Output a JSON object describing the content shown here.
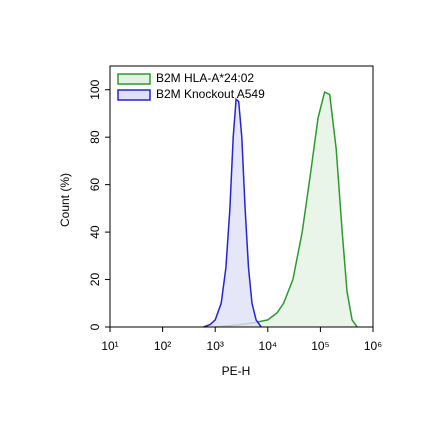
{
  "chart_data": {
    "type": "histogram-overlay",
    "x_label": "PE-H",
    "y_label": "Count (%)",
    "xscale": "log",
    "xlim": [
      10,
      1000000
    ],
    "xticks": [
      {
        "value": 10,
        "label": "10¹"
      },
      {
        "value": 100,
        "label": "10²"
      },
      {
        "value": 1000,
        "label": "10³"
      },
      {
        "value": 10000,
        "label": "10⁴"
      },
      {
        "value": 100000,
        "label": "10⁵"
      },
      {
        "value": 1000000,
        "label": "10⁶"
      }
    ],
    "ylim": [
      0,
      110
    ],
    "yticks": [
      0,
      20,
      40,
      60,
      80,
      100
    ],
    "legend": "upper left",
    "series": [
      {
        "name": "B2M HLA-A*24:02",
        "color": "#2e9a2e",
        "fill": "#e3f2e3",
        "x": [
          1000,
          3000,
          6000,
          10000,
          15000,
          20000,
          30000,
          45000,
          65000,
          90000,
          120000,
          150000,
          200000,
          260000,
          320000,
          400000,
          500000
        ],
        "values": [
          0,
          1,
          2,
          3,
          6,
          10,
          20,
          40,
          65,
          88,
          99,
          98,
          75,
          40,
          15,
          3,
          0
        ]
      },
      {
        "name": "B2M Knockout A549",
        "color": "#2424d4",
        "fill": "#e0e0f8",
        "x": [
          600,
          800,
          1000,
          1300,
          1600,
          1900,
          2200,
          2500,
          2800,
          3200,
          3700,
          4300,
          5000,
          6000,
          7500
        ],
        "values": [
          0,
          1,
          3,
          10,
          25,
          50,
          80,
          96,
          95,
          80,
          50,
          25,
          10,
          3,
          0
        ]
      }
    ]
  }
}
